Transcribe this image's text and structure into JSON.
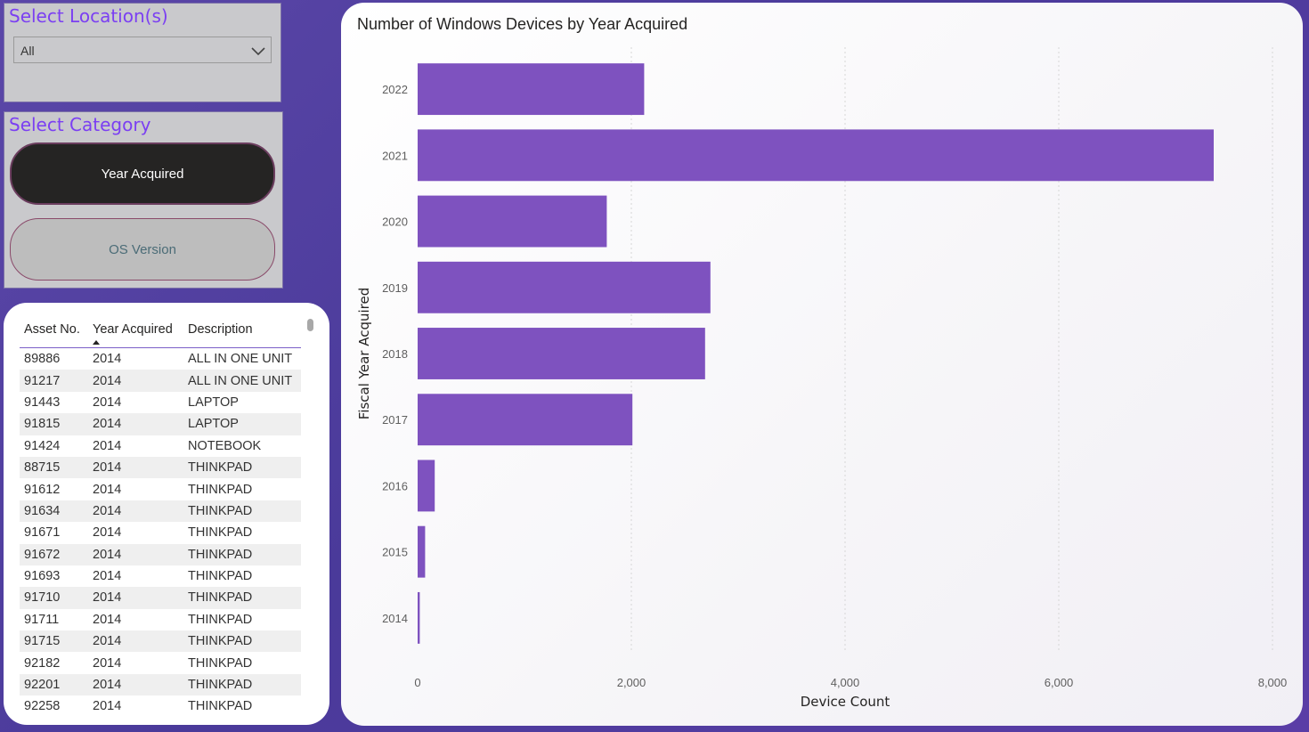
{
  "location_slicer": {
    "title": "Select Location(s)",
    "selected": "All",
    "icon": "chevron-down-icon"
  },
  "category_slicer": {
    "title": "Select Category",
    "options": [
      {
        "label": "Year Acquired",
        "active": true
      },
      {
        "label": "OS Version",
        "active": false
      }
    ]
  },
  "table": {
    "columns": [
      "Asset No.",
      "Year Acquired",
      "Description"
    ],
    "sorted_column": "Year Acquired",
    "sort_direction": "ascending",
    "rows": [
      [
        "89886",
        "2014",
        "ALL IN ONE UNIT"
      ],
      [
        "91217",
        "2014",
        "ALL IN ONE UNIT"
      ],
      [
        "91443",
        "2014",
        "LAPTOP"
      ],
      [
        "91815",
        "2014",
        "LAPTOP"
      ],
      [
        "91424",
        "2014",
        "NOTEBOOK"
      ],
      [
        "88715",
        "2014",
        "THINKPAD"
      ],
      [
        "91612",
        "2014",
        "THINKPAD"
      ],
      [
        "91634",
        "2014",
        "THINKPAD"
      ],
      [
        "91671",
        "2014",
        "THINKPAD"
      ],
      [
        "91672",
        "2014",
        "THINKPAD"
      ],
      [
        "91693",
        "2014",
        "THINKPAD"
      ],
      [
        "91710",
        "2014",
        "THINKPAD"
      ],
      [
        "91711",
        "2014",
        "THINKPAD"
      ],
      [
        "91715",
        "2014",
        "THINKPAD"
      ],
      [
        "92182",
        "2014",
        "THINKPAD"
      ],
      [
        "92201",
        "2014",
        "THINKPAD"
      ],
      [
        "92258",
        "2014",
        "THINKPAD"
      ]
    ]
  },
  "colors": {
    "bar": "#7e52bf",
    "accent": "#7b3ff2",
    "background": "#4a3a9a"
  },
  "chart_data": {
    "type": "bar",
    "orientation": "horizontal",
    "title": "Number of Windows Devices by Year Acquired",
    "xlabel": "Device Count",
    "ylabel": "Fiscal Year Acquired",
    "categories": [
      "2022",
      "2021",
      "2020",
      "2019",
      "2018",
      "2017",
      "2016",
      "2015",
      "2014"
    ],
    "values": [
      2120,
      7450,
      1770,
      2740,
      2690,
      2010,
      160,
      70,
      20
    ],
    "xlim": [
      0,
      8000
    ],
    "xticks": [
      0,
      2000,
      4000,
      6000,
      8000
    ],
    "xtick_labels": [
      "0",
      "2,000",
      "4,000",
      "6,000",
      "8,000"
    ],
    "grid": "vertical dotted",
    "legend": "none"
  }
}
